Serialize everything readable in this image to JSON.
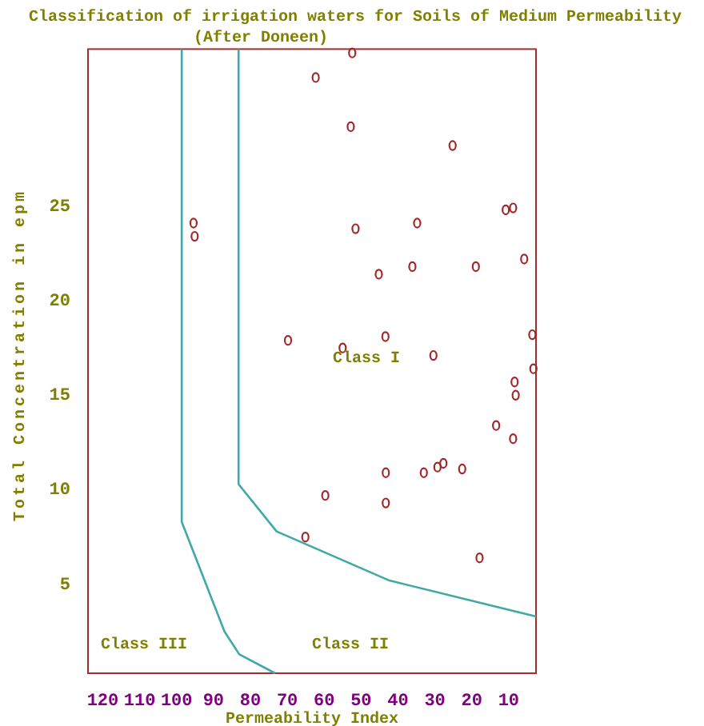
{
  "chart_data": {
    "type": "scatter",
    "title": "Classification of irrigation waters for Soils of Medium Permeability",
    "subtitle": "(After Doneen)",
    "xlabel": "Permeability Index",
    "ylabel": "Total Concentration in epm",
    "xlim": [
      124,
      2.6
    ],
    "ylim": [
      0.3,
      33.3
    ],
    "xticks": [
      120,
      110,
      100,
      90,
      80,
      70,
      60,
      50,
      40,
      30,
      20,
      10
    ],
    "yticks": [
      5,
      10,
      15,
      20,
      25
    ],
    "grid": false,
    "series": [
      {
        "marker": "circle",
        "color": "#a02828",
        "x": [
          52.4,
          62.3,
          52.8,
          25.2,
          10.8,
          8.8,
          95.4,
          95.1,
          51.5,
          34.8,
          45.2,
          36.1,
          18.9,
          5.8,
          69.8,
          3.6,
          43.4,
          55.0,
          30.4,
          3.3,
          8.4,
          8.1,
          13.4,
          8.8,
          43.3,
          33.0,
          29.3,
          27.7,
          22.6,
          59.7,
          43.3,
          65.1,
          17.9
        ],
        "values": [
          33.1,
          31.8,
          29.2,
          28.2,
          24.8,
          24.9,
          24.1,
          23.4,
          23.8,
          24.1,
          21.4,
          21.8,
          21.8,
          22.2,
          17.9,
          18.2,
          18.1,
          17.5,
          17.1,
          16.4,
          15.7,
          15.0,
          13.4,
          12.7,
          10.9,
          10.9,
          11.2,
          11.4,
          11.1,
          9.7,
          9.3,
          7.5,
          6.4
        ]
      },
      {
        "type": "line",
        "marker": "none",
        "color": "#40a8a8",
        "x": [
          98.6,
          98.6,
          87.0,
          83.0,
          73.3
        ],
        "values": [
          33.3,
          8.3,
          2.5,
          1.3,
          0.3
        ]
      },
      {
        "type": "line",
        "marker": "none",
        "color": "#40a8a8",
        "x": [
          83.2,
          83.2,
          72.9,
          42.3,
          2.6
        ],
        "values": [
          33.3,
          10.3,
          7.8,
          5.2,
          3.3
        ]
      }
    ],
    "annotations": [
      "Class I",
      "Class II",
      "Class III"
    ]
  }
}
